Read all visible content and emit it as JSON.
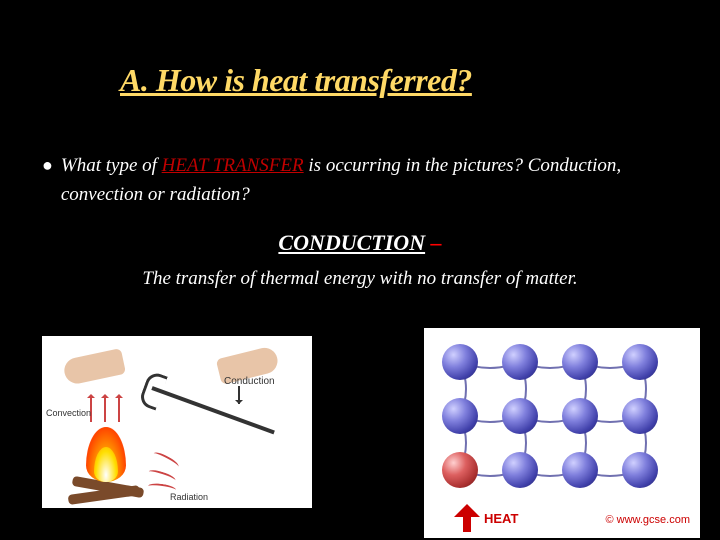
{
  "title": "A. How is heat transferred?",
  "bullet": {
    "marker": "●",
    "text_before": "What type of ",
    "heat_transfer": "HEAT TRANSFER",
    "text_after": " is occurring in the pictures? Conduction, convection or radiation?"
  },
  "conduction": {
    "word": "CONDUCTION",
    "dash": " –"
  },
  "definition": "The transfer of thermal energy with no transfer of matter.",
  "left_image": {
    "convection_label": "Convection",
    "conduction_label": "Conduction",
    "radiation_label": "Radiation"
  },
  "right_image": {
    "heat_label": "HEAT",
    "copyright": "© www.gcse.com",
    "atoms": {
      "cols": [
        18,
        78,
        138,
        198
      ],
      "rows": [
        16,
        70,
        124
      ],
      "hot_index": {
        "row": 2,
        "col": 0
      },
      "curve_rows": [
        20,
        76,
        132,
        178
      ]
    }
  },
  "colors": {
    "background": "#000000",
    "title_color": "#ffd966",
    "text_color": "#ffffff",
    "accent_red": "#c00000",
    "dash_red": "#ff0000",
    "gcse_red": "#cc0000"
  }
}
